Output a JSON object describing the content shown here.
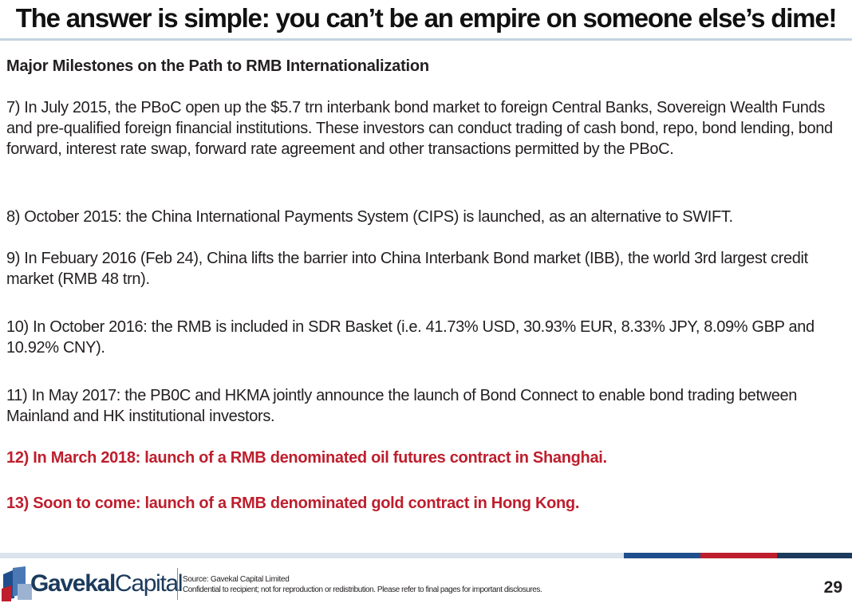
{
  "title": "The answer is simple: you can’t be an empire on someone else’s dime!",
  "heading": "Major Milestones on the Path to RMB Internationalization",
  "milestones": [
    "7) In July 2015, the PBoC open up the $5.7 trn interbank bond market to foreign Central Banks, Sovereign Wealth Funds and pre-qualified foreign financial institutions. These investors can conduct trading of cash bond, repo, bond lending, bond forward, interest rate swap, forward rate agreement and other transactions permitted by the PBoC.",
    "8) October 2015: the China International Payments System (CIPS) is launched, as an alternative to SWIFT.",
    "9) In Febuary 2016 (Feb 24), China lifts the barrier into China Interbank Bond market (IBB), the world 3rd largest credit market (RMB 48 trn).",
    "10) In October 2016: the RMB is included in SDR Basket (i.e. 41.73% USD, 30.93% EUR, 8.33% JPY, 8.09% GBP and 10.92% CNY).",
    "11) In May 2017: the PB0C and HKMA jointly announce the launch of Bond Connect to enable bond trading between Mainland and HK institutional investors.",
    "12) In March 2018: launch of a RMB denominated oil futures contract in Shanghai.",
    "13) Soon to come: launch of a RMB denominated gold contract in Hong Kong."
  ],
  "footer": {
    "logo_bold": "Gavekal",
    "logo_regular": "Capital",
    "source": "Source: Gavekal Capital Limited",
    "disclaimer": "Confidential to recipient; not for reproduction or redistribution. Please refer to final pages for important disclosures.",
    "page_number": "29"
  },
  "colors": {
    "highlight": "#be1e2d",
    "accent_blue": "#1f4e8c",
    "accent_red": "#be1e2d",
    "accent_navy": "#1b3a5c",
    "rule": "#c5d3e2"
  }
}
